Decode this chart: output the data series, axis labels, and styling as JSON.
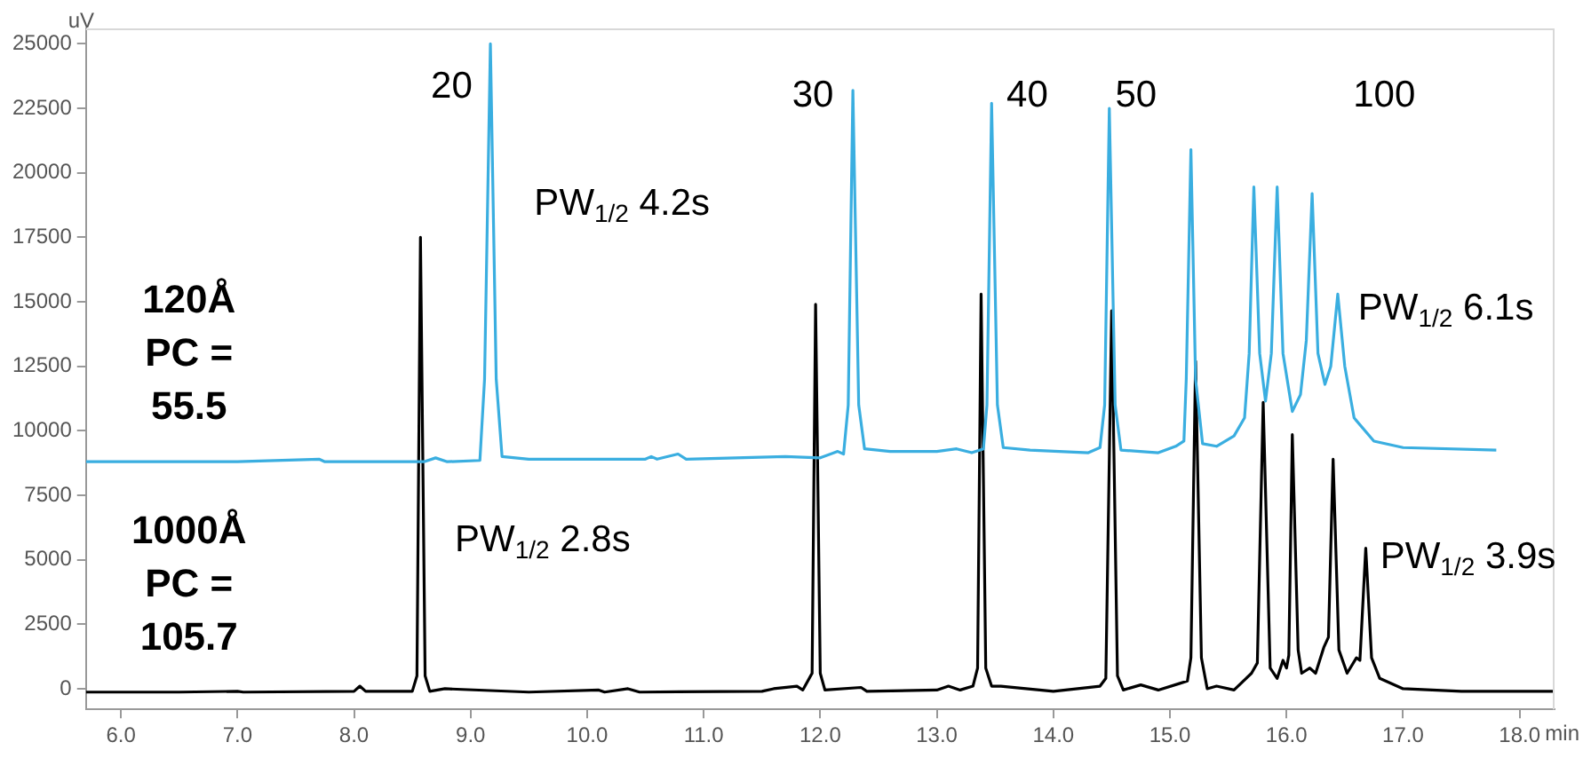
{
  "chart_data": {
    "type": "line",
    "xlabel": "min",
    "ylabel": "uV",
    "xlim": [
      5.7,
      18.3
    ],
    "ylim": [
      -800,
      25600
    ],
    "xticks": [
      {
        "value": 6,
        "label": "6.0"
      },
      {
        "value": 7,
        "label": "7.0"
      },
      {
        "value": 8,
        "label": "8.0"
      },
      {
        "value": 9,
        "label": "9.0"
      },
      {
        "value": 10,
        "label": "10.0"
      },
      {
        "value": 11,
        "label": "11.0"
      },
      {
        "value": 12,
        "label": "12.0"
      },
      {
        "value": 13,
        "label": "13.0"
      },
      {
        "value": 14,
        "label": "14.0"
      },
      {
        "value": 15,
        "label": "15.0"
      },
      {
        "value": 16,
        "label": "16.0"
      },
      {
        "value": 17,
        "label": "17.0"
      },
      {
        "value": 18,
        "label": "18.0"
      }
    ],
    "yticks": [
      0,
      2500,
      5000,
      7500,
      10000,
      12500,
      15000,
      17500,
      20000,
      22500,
      25000
    ],
    "grid": false,
    "legend": false,
    "marker": "none",
    "line_style": "solid",
    "series": [
      {
        "name": "120Å PC = 55.5",
        "color": "#3aaee0",
        "x": [
          5.7,
          7.0,
          7.7,
          7.75,
          8.6,
          8.7,
          8.8,
          9.08,
          9.12,
          9.17,
          9.22,
          9.27,
          9.5,
          10.5,
          10.55,
          10.6,
          10.78,
          10.85,
          11.7,
          12.0,
          12.15,
          12.2,
          12.24,
          12.28,
          12.33,
          12.38,
          12.6,
          13.0,
          13.17,
          13.3,
          13.4,
          13.43,
          13.47,
          13.52,
          13.57,
          13.8,
          14.3,
          14.4,
          14.44,
          14.48,
          14.53,
          14.58,
          14.9,
          15.05,
          15.12,
          15.14,
          15.18,
          15.22,
          15.28,
          15.4,
          15.55,
          15.64,
          15.68,
          15.72,
          15.77,
          15.82,
          15.87,
          15.92,
          15.97,
          16.05,
          16.12,
          16.17,
          16.22,
          16.27,
          16.33,
          16.38,
          16.44,
          16.5,
          16.58,
          16.75,
          17.0,
          17.8
        ],
        "values": [
          8800,
          8800,
          8900,
          8800,
          8800,
          8950,
          8800,
          8850,
          12000,
          25000,
          12000,
          9000,
          8900,
          8900,
          9000,
          8900,
          9100,
          8900,
          9000,
          8950,
          9200,
          9100,
          11000,
          23200,
          11000,
          9300,
          9200,
          9200,
          9300,
          9150,
          9300,
          11000,
          22700,
          11000,
          9350,
          9250,
          9150,
          9350,
          11000,
          22500,
          11000,
          9250,
          9150,
          9400,
          9600,
          12000,
          20900,
          12000,
          9500,
          9400,
          9800,
          10500,
          13000,
          19450,
          13000,
          11150,
          13000,
          19450,
          13000,
          10750,
          11400,
          13500,
          19200,
          13000,
          11800,
          12500,
          15300,
          12500,
          10500,
          9600,
          9350,
          9250
        ]
      },
      {
        "name": "1000Å PC = 105.7",
        "color": "#000000",
        "x": [
          5.7,
          6.5,
          7.0,
          7.05,
          8.0,
          8.05,
          8.1,
          8.5,
          8.54,
          8.57,
          8.61,
          8.65,
          8.78,
          9.5,
          10.1,
          10.15,
          10.35,
          10.45,
          11.5,
          11.6,
          11.8,
          11.85,
          11.93,
          11.96,
          12.0,
          12.04,
          12.35,
          12.4,
          13.0,
          13.1,
          13.2,
          13.31,
          13.35,
          13.38,
          13.42,
          13.47,
          13.55,
          14.0,
          14.4,
          14.45,
          14.5,
          14.55,
          14.6,
          14.75,
          14.9,
          15.08,
          15.15,
          15.18,
          15.22,
          15.27,
          15.32,
          15.4,
          15.55,
          15.7,
          15.75,
          15.8,
          15.86,
          15.92,
          15.97,
          16.0,
          16.02,
          16.05,
          16.1,
          16.13,
          16.2,
          16.25,
          16.32,
          16.36,
          16.4,
          16.45,
          16.52,
          16.6,
          16.63,
          16.68,
          16.73,
          16.8,
          17.0,
          17.5,
          18.3
        ],
        "values": [
          -130,
          -130,
          -100,
          -130,
          -100,
          100,
          -100,
          -100,
          500,
          17500,
          500,
          -100,
          0,
          -130,
          -50,
          -130,
          0,
          -130,
          -100,
          0,
          100,
          -50,
          600,
          14900,
          600,
          -50,
          50,
          -100,
          -50,
          100,
          -50,
          100,
          800,
          15300,
          800,
          100,
          100,
          -100,
          100,
          400,
          14650,
          500,
          -50,
          150,
          -50,
          200,
          300,
          1200,
          12700,
          1200,
          0,
          100,
          -50,
          600,
          1000,
          11100,
          800,
          400,
          1100,
          800,
          1300,
          9850,
          1500,
          600,
          800,
          600,
          1600,
          2000,
          8900,
          1500,
          600,
          1200,
          1100,
          5450,
          1200,
          400,
          0,
          -100,
          -100
        ]
      }
    ],
    "annotations": [
      "20",
      "30",
      "40",
      "50",
      "100",
      "PW$_{1/2}$ 4.2s",
      "PW$_{1/2}$ 2.8s",
      "PW$_{1/2}$ 6.1s",
      "PW$_{1/2}$ 3.9s"
    ]
  }
}
